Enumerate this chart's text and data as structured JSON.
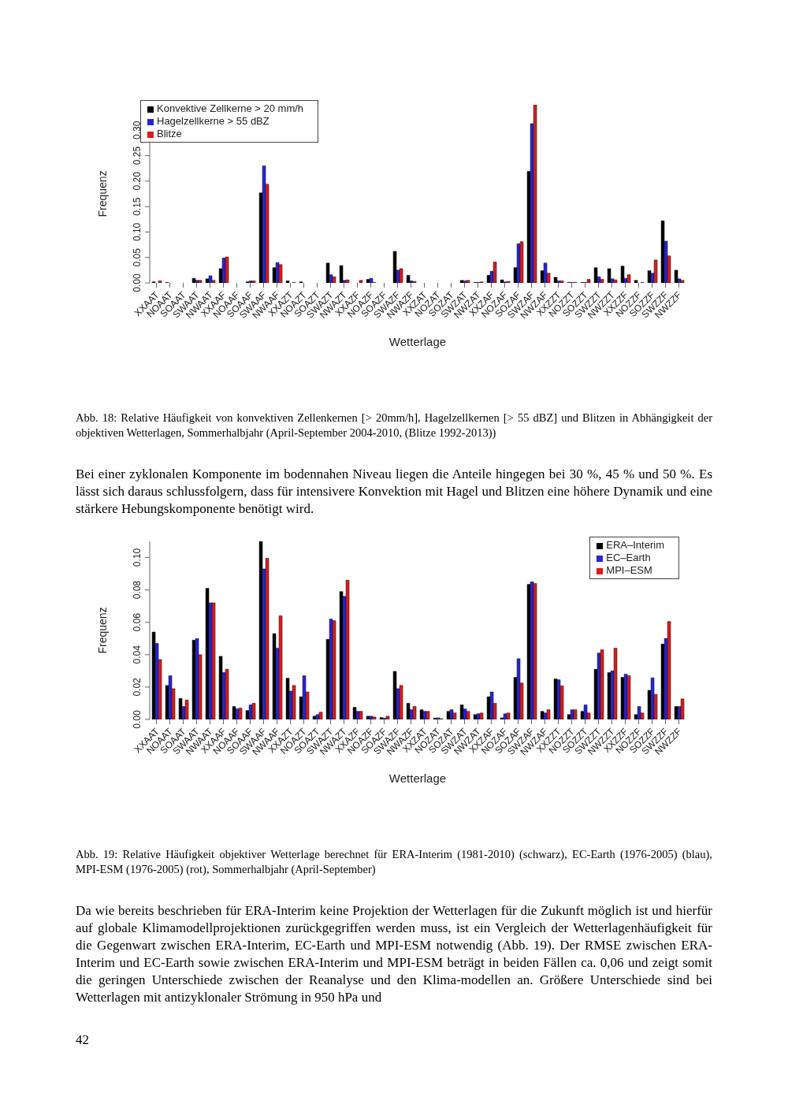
{
  "chart_data": [
    {
      "type": "bar",
      "xlabel": "Wetterlage",
      "ylabel": "Frequenz",
      "categories": [
        "XXAAT",
        "NOAAT",
        "SOAAT",
        "SWAAT",
        "NWAAT",
        "XXAAF",
        "NOAAF",
        "SOAAF",
        "SWAAF",
        "NWAAF",
        "XXAZT",
        "NOAZT",
        "SOAZT",
        "SWAZT",
        "NWAZT",
        "XXAZF",
        "NOAZF",
        "SOAZF",
        "SWAZF",
        "NWAZF",
        "XXZAT",
        "NOZAT",
        "SOZAT",
        "SWZAT",
        "NWZAT",
        "XXZAF",
        "NOZAF",
        "SOZAF",
        "SWZAF",
        "NWZAF",
        "XXZZT",
        "NOZZT",
        "SOZZT",
        "SWZZT",
        "NWZZT",
        "XXZZF",
        "NOZZF",
        "SOZZF",
        "SWZZF",
        "NWZZF"
      ],
      "series": [
        {
          "name": "Konvektive Zellkerne > 20 mm/h",
          "color": "#000000",
          "values": [
            0.002,
            0.001,
            0,
            0.009,
            0.008,
            0.028,
            0,
            0.002,
            0.177,
            0.03,
            0.004,
            0.002,
            0,
            0.039,
            0.034,
            0,
            0.007,
            0,
            0.062,
            0.015,
            0,
            0,
            0,
            0.005,
            0.001,
            0.015,
            0.006,
            0.03,
            0.219,
            0.024,
            0.011,
            0.001,
            0.001,
            0.03,
            0.028,
            0.033,
            0.005,
            0.024,
            0.122,
            0.025
          ]
        },
        {
          "name": "Hagelzellkerne > 55 dBZ",
          "color": "#2424d8",
          "values": [
            0,
            0,
            0,
            0.005,
            0.014,
            0.049,
            0,
            0.004,
            0.23,
            0.04,
            null,
            0,
            0,
            0.016,
            0.005,
            0,
            0.009,
            0,
            0.025,
            0.004,
            0,
            0,
            0,
            0.004,
            0.001,
            0.023,
            0.002,
            0.077,
            0.313,
            0.039,
            0.004,
            0.001,
            0.001,
            0.012,
            0.008,
            0.009,
            null,
            0.019,
            0.082,
            0.008
          ]
        },
        {
          "name": "Blitze",
          "color": "#dc1a1a",
          "values": [
            0.004,
            0,
            0,
            0.005,
            0.005,
            0.051,
            0,
            0.004,
            0.194,
            0.036,
            0.001,
            0,
            0,
            0.012,
            0.006,
            0.005,
            0.001,
            0,
            0.028,
            0.003,
            0,
            0,
            0,
            0.005,
            0.002,
            0.041,
            0.003,
            0.081,
            0.35,
            0.019,
            0.004,
            0.001,
            0.007,
            0.007,
            0.006,
            0.016,
            0.001,
            0.045,
            0.053,
            0.005
          ]
        }
      ],
      "ylim": [
        0,
        0.35
      ],
      "yticks": [
        {
          "value": 0,
          "label": "0.00"
        },
        {
          "value": 0.05,
          "label": "0.05"
        },
        {
          "value": 0.1,
          "label": "0.10"
        },
        {
          "value": 0.15,
          "label": "0.15"
        },
        {
          "value": 0.2,
          "label": "0.20"
        },
        {
          "value": 0.25,
          "label": "0.25"
        },
        {
          "value": 0.3,
          "label": "0.30"
        }
      ],
      "legend": "top left",
      "grid": false,
      "annotations": [
        "Abb. 18: Relative Häufigkeit von konvektiven Zellenkernen [> 20mm/h], Hagelzellkernen [> 55 dBZ] und Blitzen in Abhängigkeit der objektiven Wetterlagen, Sommerhalbjahr (April-September 2004-2010, (Blitze 1992-2013))",
        "Bei einer zyklonalen Komponente im bodennahen Niveau liegen die Anteile hingegen bei 30 %, 45 % und 50 %. Es lässt sich daraus schlussfolgern, dass für intensivere Konvektion mit Hagel und Blitzen eine höhere Dynamik und eine stärkere Hebungskomponente benötigt wird."
      ]
    },
    {
      "type": "bar",
      "xlabel": "Wetterlage",
      "ylabel": "Frequenz",
      "categories": [
        "XXAAT",
        "NOAAT",
        "SOAAT",
        "SWAAT",
        "NWAAT",
        "XXAAF",
        "NOAAF",
        "SOAAF",
        "SWAAF",
        "NWAAF",
        "XXAZT",
        "NOAZT",
        "SOAZT",
        "SWAZT",
        "NWAZT",
        "XXAZF",
        "NOAZF",
        "SOAZF",
        "SWAZF",
        "NWAZF",
        "XXZAT",
        "NOZAT",
        "SOZAT",
        "SWZAT",
        "NWZAT",
        "XXZAF",
        "NOZAF",
        "SOZAF",
        "SWZAF",
        "NWZAF",
        "XXZZT",
        "NOZZT",
        "SOZZT",
        "SWZZT",
        "NWZZT",
        "XXZZF",
        "NOZZF",
        "SOZZF",
        "SWZZF",
        "NWZZF"
      ],
      "series": [
        {
          "name": "ERA–Interim",
          "color": "#000000",
          "values": [
            0.054,
            0.021,
            0.013,
            0.049,
            0.081,
            0.039,
            0.008,
            0.0055,
            0.11,
            0.053,
            0.0255,
            0.014,
            0.002,
            0.0495,
            0.079,
            0.0075,
            0.002,
            0.0012,
            0.0297,
            0.01,
            0.006,
            0.0008,
            0.005,
            0.009,
            0.003,
            0.014,
            0.001,
            0.026,
            0.0835,
            0.005,
            0.025,
            0.003,
            0.005,
            0.031,
            0.029,
            0.026,
            0.003,
            0.018,
            0.0466,
            0.008
          ]
        },
        {
          "name": "EC–Earth",
          "color": "#2424d8",
          "values": [
            0.047,
            0.027,
            0.008,
            0.05,
            0.072,
            0.029,
            0.0065,
            0.009,
            0.093,
            0.044,
            0.0175,
            0.027,
            0.003,
            0.062,
            0.076,
            0.005,
            0.002,
            0.0008,
            0.019,
            0.006,
            0.005,
            0.001,
            0.006,
            0.0065,
            0.0035,
            0.017,
            0.0035,
            0.0375,
            0.085,
            0.004,
            0.0245,
            0.006,
            0.009,
            0.041,
            0.03,
            0.028,
            0.008,
            0.0257,
            0.05,
            0.008
          ]
        },
        {
          "name": "MPI–ESM",
          "color": "#dc1a1a",
          "values": [
            0.037,
            0.019,
            0.012,
            0.04,
            0.072,
            0.031,
            0.007,
            0.01,
            0.0995,
            0.064,
            0.021,
            0.017,
            0.0045,
            0.061,
            0.086,
            0.005,
            0.0015,
            0.002,
            0.021,
            0.008,
            0.005,
            0.0005,
            0.004,
            0.005,
            0.004,
            0.01,
            0.004,
            0.0225,
            0.084,
            0.006,
            0.0207,
            0.006,
            0.004,
            0.043,
            0.044,
            0.027,
            0.004,
            0.0155,
            0.0605,
            0.0127
          ]
        }
      ],
      "ylim": [
        0,
        0.11
      ],
      "yticks": [
        {
          "value": 0,
          "label": "0.00"
        },
        {
          "value": 0.02,
          "label": "0.02"
        },
        {
          "value": 0.04,
          "label": "0.04"
        },
        {
          "value": 0.06,
          "label": "0.06"
        },
        {
          "value": 0.08,
          "label": "0.08"
        },
        {
          "value": 0.1,
          "label": "0.10"
        }
      ],
      "legend": "top right",
      "grid": false,
      "annotations": [
        "Abb. 19: Relative Häufigkeit objektiver Wetterlage berechnet für ERA-Interim (1981-2010) (schwarz), EC-Earth (1976-2005) (blau), MPI-ESM (1976-2005) (rot), Sommerhalbjahr (April-September)",
        "Da wie bereits beschrieben für ERA-Interim keine Projektion der Wetterlagen für die Zukunft möglich ist und hierfür auf globale Klimamodellprojektionen zurückgegriffen werden muss, ist ein Vergleich der Wetterlagenhäufigkeit für die Gegenwart zwischen ERA-Interim, EC-Earth und MPI-ESM notwendig (Abb. 19). Der RMSE zwischen ERA-Interim und EC-Earth sowie zwischen ERA-Interim und MPI-ESM beträgt in beiden Fällen ca. 0,06 und zeigt somit die geringen Unterschiede zwischen der Reanalyse und den Klima-modellen an. Größere Unterschiede sind bei Wetterlagen mit antizyklonaler Strömung in 950 hPa und",
        "42"
      ]
    }
  ]
}
